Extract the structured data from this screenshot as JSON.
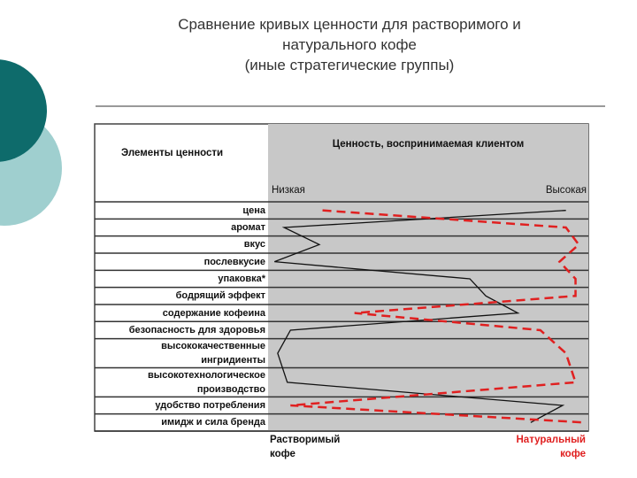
{
  "chart_data": {
    "type": "line",
    "title": "Сравнение кривых ценности для растворимого и натурального кофе",
    "subtitle": "(иные стратегические группы)",
    "row_header": "Элементы ценности",
    "x_axis_title": "Ценность, воспринимаемая клиентом",
    "x_axis_low": "Низкая",
    "x_axis_high": "Высокая",
    "xlim": [
      0,
      100
    ],
    "categories": [
      "цена",
      "аромат",
      "вкус",
      "послевкусие",
      "упаковка*",
      "бодрящий эффект",
      "содержание кофеина",
      "безопасность для здоровья",
      "высококачественные ингридиенты",
      "высокотехнологическое производство",
      "удобство потребления",
      "имидж и сила бренда"
    ],
    "series": [
      {
        "name": "Растворимый кофе",
        "color": "#111111",
        "dash": false,
        "values": [
          93,
          5,
          16,
          2,
          63,
          68,
          78,
          7,
          3,
          6,
          92,
          82
        ]
      },
      {
        "name": "Натуральный кофе",
        "color": "#e02020",
        "dash": true,
        "values": [
          17,
          93,
          97,
          91,
          96,
          96,
          27,
          85,
          93,
          96,
          7,
          99
        ]
      }
    ]
  }
}
